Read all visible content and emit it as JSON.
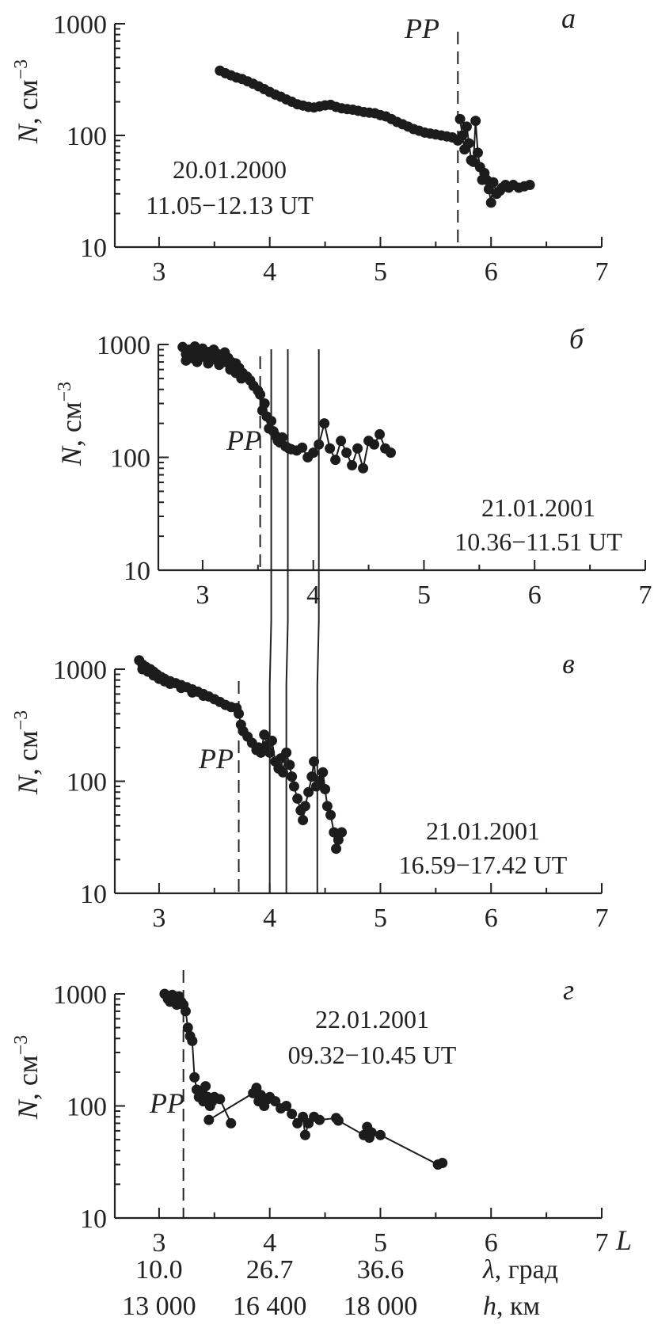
{
  "figure": {
    "x_axis_letter": "L",
    "extra_axis_rows": [
      {
        "values": [
          "10.0",
          "26.7",
          "36.6"
        ],
        "label_symbol": "λ",
        "label_unit": ", град"
      },
      {
        "values": [
          "13 000",
          "16 400",
          "18 000"
        ],
        "label_symbol": "h",
        "label_unit": ", км"
      }
    ],
    "cross_panel_lines_L": [
      3.62,
      3.77,
      4.05
    ]
  },
  "chart_data": [
    {
      "type": "scatter",
      "panel_label": "а",
      "ylabel_symbol": "N",
      "ylabel_unit": ", см",
      "ylabel_exp": "−3",
      "y_scale": "log",
      "xlim": [
        2.6,
        7.0
      ],
      "ylim": [
        10,
        1000
      ],
      "xticks": [
        "3",
        "4",
        "5",
        "6",
        "7"
      ],
      "yticks": [
        "10",
        "100",
        "1000"
      ],
      "annotation_line1": "20.01.2000",
      "annotation_line2": "11.05−12.13 UT",
      "pp_label": "PP",
      "pp_L": 5.7,
      "series": [
        {
          "x": [
            3.55,
            3.6,
            3.65,
            3.7,
            3.75,
            3.8,
            3.85,
            3.9,
            3.95,
            4.0,
            4.05,
            4.1,
            4.15,
            4.2,
            4.25,
            4.3,
            4.35,
            4.4,
            4.45,
            4.5,
            4.55,
            4.6,
            4.65,
            4.7,
            4.75,
            4.8,
            4.85,
            4.9,
            4.95,
            5.0,
            5.05,
            5.1,
            5.15,
            5.2,
            5.25,
            5.3,
            5.35,
            5.4,
            5.45,
            5.5,
            5.55,
            5.6,
            5.65,
            5.7
          ],
          "y": [
            380,
            360,
            345,
            330,
            320,
            305,
            290,
            275,
            260,
            245,
            232,
            222,
            210,
            200,
            190,
            185,
            180,
            178,
            182,
            186,
            188,
            180,
            175,
            172,
            170,
            166,
            162,
            160,
            158,
            152,
            148,
            140,
            132,
            126,
            120,
            114,
            110,
            106,
            104,
            102,
            100,
            98,
            96,
            90
          ]
        },
        {
          "x": [
            5.72,
            5.74,
            5.76,
            5.78,
            5.8,
            5.82,
            5.84,
            5.86,
            5.88,
            5.9,
            5.92,
            5.94,
            5.96,
            5.98,
            6.0,
            6.02,
            6.05,
            6.08,
            6.1,
            6.13,
            6.16,
            6.2,
            6.25,
            6.3,
            6.35
          ],
          "y": [
            140,
            100,
            75,
            120,
            85,
            60,
            58,
            135,
            70,
            52,
            40,
            46,
            40,
            33,
            25,
            38,
            30,
            32,
            34,
            36,
            34,
            36,
            34,
            35,
            36
          ]
        }
      ]
    },
    {
      "type": "scatter",
      "panel_label": "б",
      "ylabel_symbol": "N",
      "ylabel_unit": ", см",
      "ylabel_exp": "−3",
      "y_scale": "log",
      "xlim": [
        2.6,
        7.0
      ],
      "ylim": [
        10,
        1000
      ],
      "xticks": [
        "3",
        "4",
        "5",
        "6",
        "7"
      ],
      "yticks": [
        "10",
        "100",
        "1000"
      ],
      "annotation_line1": "21.01.2001",
      "annotation_line2": "10.36−11.51 UT",
      "pp_label": "PP",
      "pp_L": 3.52,
      "series": [
        {
          "x": [
            2.82,
            2.85,
            2.88,
            2.9,
            2.93,
            2.96,
            3.0,
            3.03,
            3.06,
            3.1,
            3.13,
            3.16,
            3.2,
            3.23,
            3.26,
            3.3,
            3.33,
            3.36,
            3.4,
            3.43,
            3.46,
            3.5,
            3.52,
            3.54,
            3.56,
            3.58,
            3.6,
            3.62,
            3.64,
            3.66,
            3.68,
            3.7,
            3.72,
            3.75,
            3.78,
            3.8,
            3.85,
            3.9,
            3.95,
            4.0,
            4.05,
            4.1,
            4.15,
            4.2,
            4.25,
            4.3,
            4.35,
            4.4,
            4.45,
            4.5,
            4.55,
            4.6,
            4.65,
            4.7
          ],
          "y": [
            950,
            820,
            900,
            880,
            960,
            850,
            920,
            800,
            860,
            900,
            830,
            780,
            850,
            760,
            700,
            680,
            620,
            560,
            520,
            480,
            430,
            390,
            360,
            260,
            300,
            230,
            180,
            210,
            170,
            155,
            140,
            135,
            150,
            125,
            120,
            118,
            115,
            122,
            100,
            110,
            130,
            200,
            120,
            95,
            140,
            110,
            85,
            120,
            80,
            140,
            130,
            160,
            120,
            110
          ]
        },
        {
          "x": [
            2.85,
            2.9,
            2.95,
            3.0,
            3.05,
            3.1,
            3.15,
            3.2,
            3.25,
            3.3,
            3.35
          ],
          "y": [
            720,
            760,
            700,
            780,
            680,
            740,
            660,
            700,
            600,
            560,
            500
          ]
        }
      ]
    },
    {
      "type": "scatter",
      "panel_label": "в",
      "ylabel_symbol": "N",
      "ylabel_unit": ", см",
      "ylabel_exp": "−3",
      "y_scale": "log",
      "xlim": [
        2.6,
        7.0
      ],
      "ylim": [
        10,
        1000
      ],
      "xticks": [
        "3",
        "4",
        "5",
        "6",
        "7"
      ],
      "yticks": [
        "10",
        "100",
        "1000"
      ],
      "annotation_line1": "21.01.2001",
      "annotation_line2": "16.59−17.42 UT",
      "pp_label": "PP",
      "pp_L": 3.72,
      "series": [
        {
          "x": [
            2.82,
            2.85,
            2.88,
            2.92,
            2.95,
            2.98,
            3.02,
            3.05,
            3.1,
            3.15,
            3.2,
            3.25,
            3.3,
            3.35,
            3.4,
            3.45,
            3.5,
            3.55,
            3.6,
            3.65,
            3.7,
            3.72,
            3.74,
            3.76,
            3.8,
            3.84,
            3.88,
            3.9,
            3.92,
            3.95,
            3.98,
            4.0,
            4.02,
            4.05,
            4.08,
            4.1,
            4.12,
            4.15,
            4.18,
            4.2,
            4.22,
            4.25,
            4.28,
            4.3,
            4.32,
            4.35,
            4.38,
            4.4,
            4.42,
            4.45,
            4.48,
            4.5,
            4.52,
            4.55,
            4.58,
            4.6,
            4.62,
            4.65
          ],
          "y": [
            1200,
            1100,
            1050,
            1000,
            950,
            900,
            850,
            820,
            780,
            750,
            720,
            690,
            660,
            630,
            600,
            570,
            540,
            510,
            480,
            460,
            450,
            400,
            320,
            280,
            250,
            220,
            190,
            200,
            180,
            260,
            210,
            180,
            230,
            150,
            130,
            160,
            120,
            180,
            140,
            110,
            90,
            70,
            55,
            45,
            60,
            80,
            110,
            150,
            90,
            100,
            120,
            85,
            60,
            50,
            35,
            25,
            30,
            35
          ]
        },
        {
          "x": [
            2.85,
            2.9,
            2.95,
            3.0,
            3.05,
            3.1,
            3.2,
            3.3,
            3.4
          ],
          "y": [
            1000,
            950,
            880,
            820,
            780,
            740,
            680,
            620,
            580
          ]
        }
      ]
    },
    {
      "type": "scatter",
      "panel_label": "г",
      "ylabel_symbol": "N",
      "ylabel_unit": ", см",
      "ylabel_exp": "−3",
      "y_scale": "log",
      "xlim": [
        2.6,
        7.0
      ],
      "ylim": [
        10,
        1000
      ],
      "xticks": [
        "3",
        "4",
        "5",
        "6",
        "7"
      ],
      "yticks": [
        "10",
        "100",
        "1000"
      ],
      "annotation_line1": "22.01.2001",
      "annotation_line2": "09.32−10.45 UT",
      "pp_label": "PP",
      "pp_L": 3.22,
      "series": [
        {
          "x": [
            3.05,
            3.08,
            3.1,
            3.12,
            3.14,
            3.16,
            3.18,
            3.2,
            3.22,
            3.24,
            3.26,
            3.28,
            3.3,
            3.32,
            3.34,
            3.36,
            3.38,
            3.4,
            3.42,
            3.44,
            3.46,
            3.48,
            3.5,
            3.55,
            3.65
          ],
          "y": [
            1000,
            900,
            850,
            980,
            900,
            800,
            950,
            850,
            800,
            700,
            500,
            420,
            380,
            180,
            140,
            120,
            130,
            110,
            150,
            120,
            100,
            110,
            120,
            115,
            70
          ]
        },
        {
          "x": [
            3.45,
            3.85,
            3.88,
            3.9,
            3.92,
            3.95,
            3.98,
            4.0,
            4.05,
            4.1,
            4.15,
            4.2,
            4.25,
            4.3,
            4.32,
            4.35,
            4.4,
            4.45,
            4.6,
            4.62,
            4.85,
            4.88,
            4.9,
            4.92,
            5.0,
            5.52,
            5.56
          ],
          "y": [
            75,
            130,
            145,
            110,
            125,
            100,
            115,
            120,
            110,
            95,
            100,
            85,
            70,
            80,
            55,
            70,
            80,
            75,
            78,
            74,
            55,
            65,
            52,
            58,
            55,
            30,
            31
          ]
        }
      ]
    }
  ]
}
